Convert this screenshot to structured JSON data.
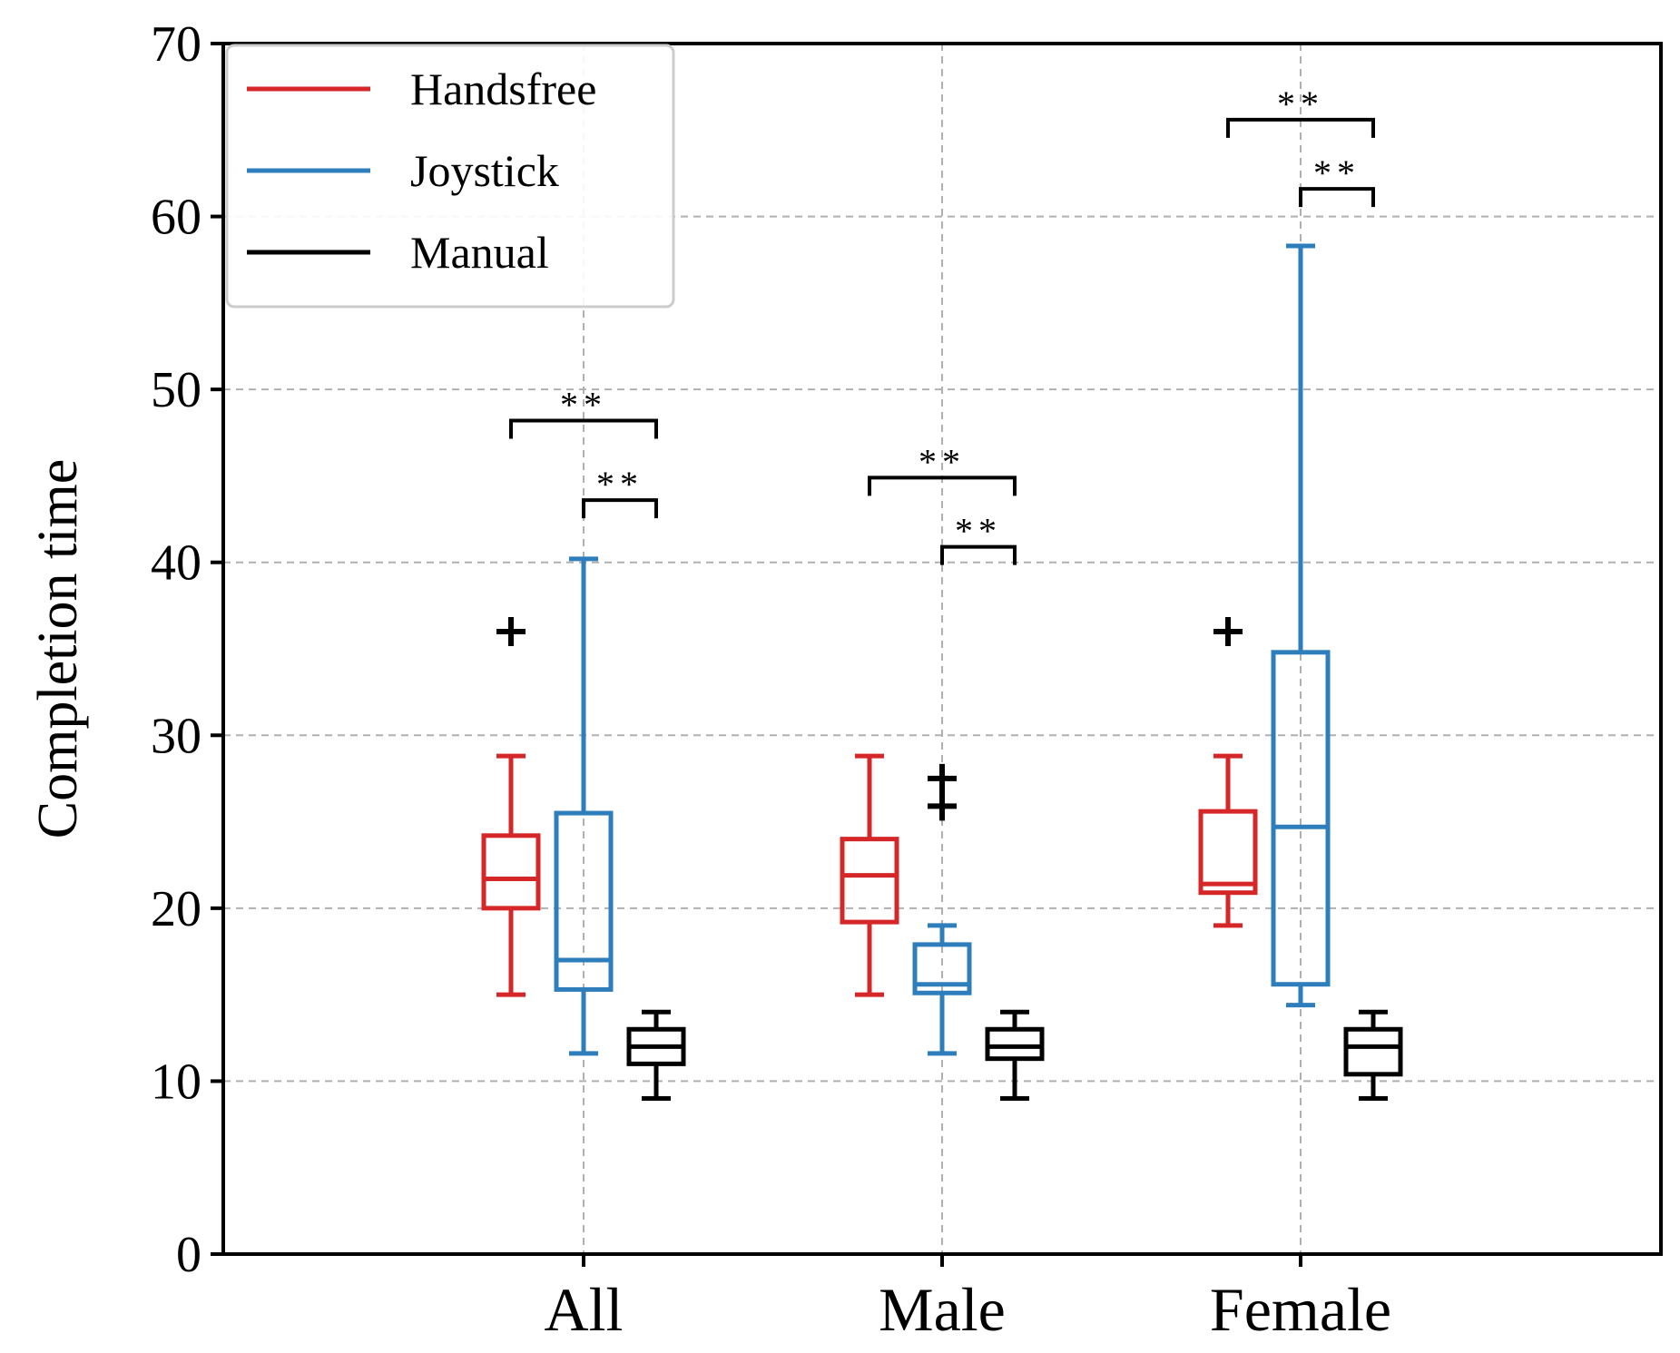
{
  "chart_data": {
    "type": "boxplot",
    "title": "",
    "xlabel": "",
    "ylabel": "Completion time",
    "ylim": [
      0,
      70
    ],
    "yticks": [
      0,
      10,
      20,
      30,
      40,
      50,
      60,
      70
    ],
    "grid": true,
    "legend_position": "top-left",
    "categories": [
      "All",
      "Male",
      "Female"
    ],
    "series": [
      {
        "name": "Handsfree",
        "color": "#d62728",
        "boxes": [
          {
            "whislo": 15,
            "q1": 20,
            "med": 21.7,
            "q3": 24.2,
            "whishi": 28.8,
            "fliers": [
              36
            ]
          },
          {
            "whislo": 15,
            "q1": 19.2,
            "med": 21.9,
            "q3": 24,
            "whishi": 28.8,
            "fliers": []
          },
          {
            "whislo": 19,
            "q1": 20.9,
            "med": 21.4,
            "q3": 25.6,
            "whishi": 28.8,
            "fliers": [
              36
            ]
          }
        ]
      },
      {
        "name": "Joystick",
        "color": "#2e7ebc",
        "boxes": [
          {
            "whislo": 11.6,
            "q1": 15.3,
            "med": 17,
            "q3": 25.5,
            "whishi": 40.2,
            "fliers": []
          },
          {
            "whislo": 11.6,
            "q1": 15.1,
            "med": 15.6,
            "q3": 17.9,
            "whishi": 19,
            "fliers": [
              25.9,
              27.5
            ]
          },
          {
            "whislo": 14.4,
            "q1": 15.6,
            "med": 24.7,
            "q3": 34.8,
            "whishi": 58.3,
            "fliers": []
          }
        ]
      },
      {
        "name": "Manual",
        "color": "#000000",
        "boxes": [
          {
            "whislo": 9,
            "q1": 11,
            "med": 12,
            "q3": 13,
            "whishi": 14,
            "fliers": []
          },
          {
            "whislo": 9,
            "q1": 11.3,
            "med": 12,
            "q3": 13,
            "whishi": 14,
            "fliers": []
          },
          {
            "whislo": 9,
            "q1": 10.4,
            "med": 12,
            "q3": 13,
            "whishi": 14,
            "fliers": []
          }
        ]
      }
    ],
    "significance": [
      {
        "category": 0,
        "from": "Handsfree",
        "to": "Manual",
        "y": 48.2,
        "label": "**"
      },
      {
        "category": 0,
        "from": "Joystick",
        "to": "Manual",
        "y": 43.6,
        "label": "**"
      },
      {
        "category": 1,
        "from": "Handsfree",
        "to": "Manual",
        "y": 44.9,
        "label": "**"
      },
      {
        "category": 1,
        "from": "Joystick",
        "to": "Manual",
        "y": 40.9,
        "label": "**"
      },
      {
        "category": 2,
        "from": "Handsfree",
        "to": "Manual",
        "y": 65.6,
        "label": "**"
      },
      {
        "category": 2,
        "from": "Joystick",
        "to": "Manual",
        "y": 61.6,
        "label": "**"
      }
    ]
  }
}
